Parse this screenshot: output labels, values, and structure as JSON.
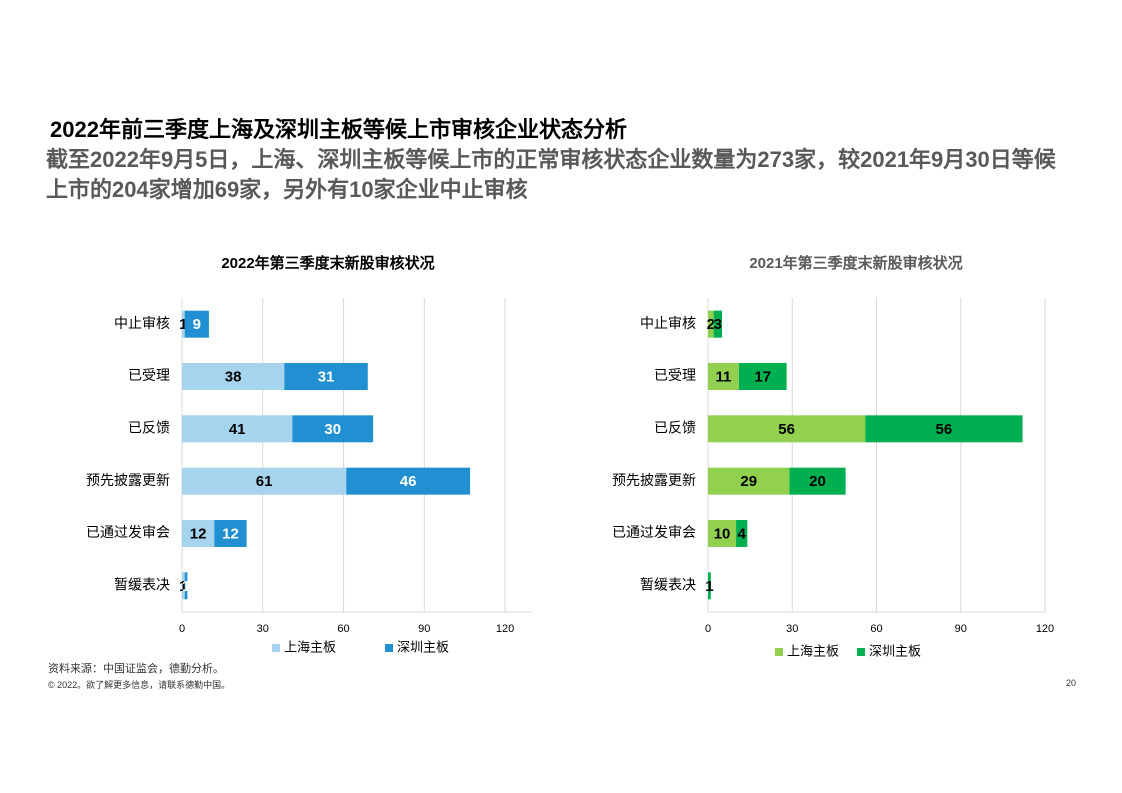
{
  "slide": {
    "title": "2022年前三季度上海及深圳主板等候上市审核企业状态分析",
    "subtitle": "截至2022年9月5日，上海、深圳主板等候上市的正常审核状态企业数量为273家，较2021年9月30日等候上市的204家增加69家，另外有10家企业中止审核",
    "source": "资料来源：中国证监会，德勤分析。",
    "copyright": "© 2022。欲了解更多信息，请联系德勤中国。",
    "page": "20"
  },
  "chart_data": [
    {
      "type": "stacked-barh",
      "title": "2022年第三季度末新股审核状况",
      "categories": [
        "中止审核",
        "已受理",
        "已反馈",
        "预先披露更新",
        "已通过发审会",
        "暂缓表决"
      ],
      "series": [
        {
          "name": "上海主板",
          "color": "#a6d4ee",
          "values": [
            1,
            38,
            41,
            61,
            12,
            1
          ]
        },
        {
          "name": "深圳主板",
          "color": "#2190d2",
          "values": [
            9,
            31,
            30,
            46,
            12,
            1
          ]
        }
      ],
      "xlim": [
        0,
        130
      ],
      "xticks": [
        0,
        30,
        60,
        90,
        120
      ],
      "grid": true
    },
    {
      "type": "stacked-barh",
      "title": "2021年第三季度末新股审核状况",
      "categories": [
        "中止审核",
        "已受理",
        "已反馈",
        "预先披露更新",
        "已通过发审会",
        "暂缓表决"
      ],
      "series": [
        {
          "name": "上海主板",
          "color": "#92d050",
          "values": [
            2,
            11,
            56,
            29,
            10,
            0
          ]
        },
        {
          "name": "深圳主板",
          "color": "#00b050",
          "values": [
            3,
            17,
            56,
            20,
            4,
            1
          ]
        }
      ],
      "xlim": [
        0,
        120
      ],
      "xticks": [
        0,
        30,
        60,
        90,
        120
      ],
      "grid": true
    }
  ]
}
